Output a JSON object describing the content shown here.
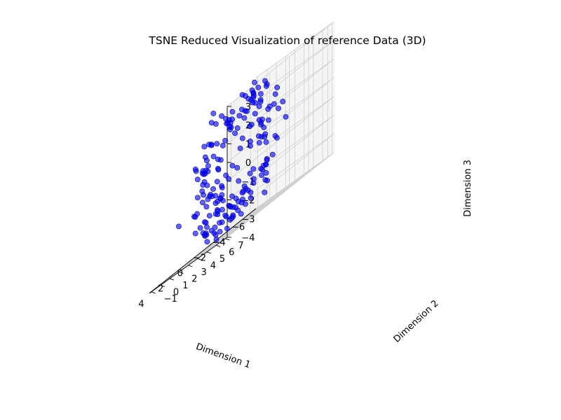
{
  "chart_data": {
    "type": "scatter",
    "title": "TSNE Reduced Visualization of reference Data (3D)",
    "xlabel": "Dimension 1",
    "ylabel": "Dimension 2",
    "zlabel": "Dimension 3",
    "xlim": [
      -6.6,
      4.4
    ],
    "ylim": [
      -1.2,
      7.2
    ],
    "zlim": [
      -4,
      3
    ],
    "xticks": [
      "−6",
      "−4",
      "−2",
      "0",
      "2",
      "4"
    ],
    "yticks": [
      "−1",
      "0",
      "1",
      "2",
      "3",
      "4",
      "5",
      "6",
      "7"
    ],
    "zticks": [
      "−4",
      "−3",
      "−2",
      "−1",
      "0",
      "1",
      "2",
      "3"
    ],
    "grid": true,
    "series": [
      {
        "color": "#0000ff",
        "points": [
          [
            -5.89,
            0.71,
            -1.79
          ],
          [
            -5.16,
            1.31,
            -2.77
          ],
          [
            -5.48,
            1.07,
            -2.44
          ],
          [
            -5.37,
            2.35,
            -0.97
          ],
          [
            -4.55,
            2.14,
            -1.68
          ],
          [
            -3.91,
            1.05,
            -3.13
          ],
          [
            -3.51,
            1.76,
            -1.66
          ],
          [
            -2.89,
            1.6,
            -2.41
          ],
          [
            -1.92,
            1.74,
            -3.21
          ],
          [
            -1.72,
            0.79,
            -3.77
          ],
          [
            -1.18,
            1.9,
            -2.22
          ],
          [
            -0.38,
            3.69,
            -3.46
          ],
          [
            0.24,
            1.78,
            -2.32
          ],
          [
            1.02,
            1.24,
            -2.45
          ],
          [
            1.37,
            2.79,
            -3.55
          ],
          [
            1.21,
            2.23,
            -1.35
          ],
          [
            2.14,
            1.59,
            -1.68
          ],
          [
            1.84,
            4.83,
            -2.54
          ],
          [
            2.28,
            6.21,
            -1.51
          ],
          [
            2.78,
            4.43,
            -0.7
          ],
          [
            3.13,
            3.71,
            -0.5
          ],
          [
            1.74,
            2.95,
            0.74
          ],
          [
            3.84,
            4.05,
            -0.84
          ],
          [
            0.66,
            5.79,
            -0.15
          ],
          [
            1.42,
            4.44,
            1.88
          ],
          [
            3.27,
            3.57,
            -0.21
          ],
          [
            2.31,
            2.4,
            0.4
          ],
          [
            1.34,
            2.3,
            1.4
          ],
          [
            -0.64,
            5.57,
            0.53
          ],
          [
            0.4,
            3.86,
            1.11
          ],
          [
            -0.34,
            2.3,
            1.91
          ],
          [
            -1.91,
            3.44,
            2.45
          ],
          [
            -2.43,
            4.66,
            1.1
          ],
          [
            -4.11,
            3.69,
            1.76
          ],
          [
            -3.21,
            2.87,
            2.08
          ],
          [
            -2.53,
            3.56,
            1.8
          ],
          [
            -5.12,
            3.24,
            0.75
          ],
          [
            -4.79,
            3.91,
            -0.17
          ],
          [
            -5.65,
            1.89,
            1.41
          ],
          [
            -3.97,
            2.36,
            -1.89
          ],
          [
            -4.91,
            1.5,
            -3.4
          ],
          [
            -3.61,
            0.79,
            -3.23
          ],
          [
            -1.18,
            0.81,
            -3.21
          ],
          [
            -1.04,
            0.52,
            -2.46
          ],
          [
            -0.22,
            0.68,
            -3.22
          ],
          [
            0.5,
            1.8,
            -3.15
          ],
          [
            2.38,
            2.85,
            -3.15
          ],
          [
            3.22,
            0.74,
            -1.6
          ],
          [
            2.56,
            4.7,
            -1.6
          ],
          [
            2.41,
            3.32,
            -1.15
          ],
          [
            2.88,
            4.62,
            0.46
          ],
          [
            1.03,
            5.52,
            1.59
          ],
          [
            1.65,
            4.74,
            1.64
          ],
          [
            1.35,
            3.79,
            1.13
          ],
          [
            -0.13,
            4.58,
            1.81
          ],
          [
            -0.93,
            3.92,
            2.38
          ],
          [
            -2.14,
            2.96,
            2.16
          ],
          [
            -3.43,
            3.1,
            2.6
          ],
          [
            -5.52,
            1.88,
            0.94
          ],
          [
            -5.81,
            0.98,
            0.28
          ],
          [
            -6.09,
            0.43,
            -0.81
          ],
          [
            -4.32,
            0.95,
            -2.24
          ],
          [
            -3.58,
            0.49,
            -2.51
          ],
          [
            -2.13,
            1.32,
            -2.51
          ],
          [
            -0.93,
            0.8,
            -3.14
          ],
          [
            1.2,
            0.95,
            -2.59
          ],
          [
            2.23,
            1.47,
            -1.76
          ],
          [
            2.49,
            4.75,
            -1.95
          ],
          [
            1.64,
            4.88,
            -0.48
          ],
          [
            2.7,
            3.03,
            0.19
          ],
          [
            3.45,
            3.01,
            0.2
          ],
          [
            3.16,
            2.55,
            0.68
          ],
          [
            2.36,
            3.11,
            1.58
          ],
          [
            0.41,
            4.66,
            2.88
          ],
          [
            -1.26,
            3.92,
            0.87
          ],
          [
            -2.22,
            4.68,
            1.03
          ],
          [
            -3.83,
            2.82,
            2.26
          ],
          [
            -3.53,
            2.5,
            1.66
          ],
          [
            -3.7,
            2.38,
            0.53
          ],
          [
            -4.1,
            0.84,
            -2.83
          ],
          [
            -3.06,
            0.6,
            -2.81
          ],
          [
            -2.57,
            0.39,
            -3.42
          ],
          [
            -2.16,
            0.67,
            -2.74
          ],
          [
            -0.06,
            2.32,
            -2.92
          ],
          [
            0.58,
            0.8,
            -3.22
          ],
          [
            0.91,
            1.31,
            -1.7
          ],
          [
            2.44,
            3.92,
            -2.39
          ],
          [
            1.05,
            3.1,
            -1.17
          ],
          [
            3.19,
            3.31,
            -0.31
          ],
          [
            2.32,
            3.91,
            1.32
          ],
          [
            0.62,
            3.18,
            1.96
          ],
          [
            0.85,
            2.89,
            2.56
          ],
          [
            -0.97,
            1.79,
            2.0
          ],
          [
            -3.06,
            2.35,
            2.94
          ],
          [
            -3.11,
            2.09,
            1.94
          ],
          [
            -6.06,
            0.45,
            -2.0
          ],
          [
            -2.61,
            1.73,
            -2.2
          ],
          [
            -1.13,
            0.89,
            -2.55
          ],
          [
            -0.08,
            0.35,
            -3.64
          ],
          [
            1.76,
            0.88,
            -1.73
          ],
          [
            2.29,
            3.73,
            -1.41
          ],
          [
            1.85,
            4.69,
            -1.03
          ],
          [
            3.19,
            2.75,
            -0.79
          ],
          [
            2.79,
            4.56,
            -0.11
          ],
          [
            2.51,
            3.14,
            0.19
          ],
          [
            2.54,
            3.56,
            1.5
          ],
          [
            2.05,
            2.69,
            0.46
          ],
          [
            -0.98,
            5.03,
            0.83
          ],
          [
            -1.35,
            3.14,
            1.84
          ],
          [
            -2.49,
            3.35,
            2.55
          ],
          [
            -0.34,
            0.75,
            2.97
          ],
          [
            -5.98,
            0.13,
            0.55
          ],
          [
            -5.99,
            1.52,
            -0.83
          ],
          [
            -4.24,
            0.63,
            -1.8
          ],
          [
            -3.47,
            1.21,
            -2.59
          ],
          [
            -0.51,
            0.66,
            -3.46
          ],
          [
            0.81,
            1.03,
            -3.16
          ],
          [
            1.48,
            1.56,
            -2.97
          ],
          [
            1.48,
            1.5,
            -1.31
          ],
          [
            2.24,
            2.64,
            -2.48
          ],
          [
            1.89,
            4.03,
            -1.25
          ],
          [
            3.36,
            3.59,
            0.23
          ],
          [
            1.99,
            3.99,
            0.29
          ],
          [
            3.27,
            2.6,
            0.81
          ],
          [
            1.73,
            3.19,
            2.39
          ],
          [
            1.15,
            2.12,
            2.6
          ],
          [
            0.07,
            2.52,
            2.22
          ],
          [
            -1.66,
            2.83,
            2.62
          ],
          [
            -2.79,
            2.7,
            1.83
          ],
          [
            -3.81,
            2.9,
            2.35
          ],
          [
            -5.29,
            2.59,
            0.55
          ],
          [
            -6.09,
            0.34,
            -0.35
          ],
          [
            -5.53,
            1.72,
            -1.71
          ],
          [
            -4.87,
            1.82,
            -2.86
          ],
          [
            -3.79,
            0.38,
            -2.48
          ],
          [
            -2.61,
            0.49,
            -3.31
          ],
          [
            0.29,
            1.73,
            -3.86
          ],
          [
            -0.19,
            2.58,
            -2.55
          ],
          [
            1.42,
            3.98,
            -2.97
          ],
          [
            1.83,
            3.47,
            -1.81
          ],
          [
            2.79,
            4.8,
            -1.75
          ],
          [
            2.54,
            5.11,
            -0.71
          ],
          [
            2.48,
            4.2,
            -0.05
          ],
          [
            2.01,
            4.23,
            0.98
          ],
          [
            3.35,
            3.75,
            1.08
          ],
          [
            0.28,
            4.48,
            2.11
          ],
          [
            0.55,
            3.45,
            1.65
          ],
          [
            -1.6,
            3.75,
            2.23
          ],
          [
            -3.13,
            2.15,
            2.43
          ],
          [
            -2.37,
            1.77,
            0.44
          ],
          [
            -4.5,
            1.92,
            -0.41
          ],
          [
            -5.27,
            1.25,
            -1.97
          ],
          [
            -2.79,
            1.24,
            -2.98
          ],
          [
            -2.15,
            0.98,
            -3.38
          ],
          [
            0.72,
            1.06,
            -3.11
          ],
          [
            0.42,
            2.25,
            -3.57
          ],
          [
            1.77,
            2.54,
            -2.27
          ],
          [
            1.36,
            3.27,
            -1.76
          ],
          [
            2.72,
            2.74,
            -0.64
          ],
          [
            2.79,
            3.21,
            0.33
          ],
          [
            1.28,
            5.05,
            1.32
          ],
          [
            0.99,
            3.95,
            1.52
          ],
          [
            0.35,
            3.5,
            1.96
          ],
          [
            -1.02,
            2.85,
            1.82
          ],
          [
            -2.98,
            2.49,
            1.25
          ],
          [
            -4.19,
            1.67,
            1.44
          ],
          [
            -3.85,
            2.04,
            -0.5
          ],
          [
            -5.19,
            0.97,
            -2.11
          ],
          [
            -4.66,
            1.45,
            -2.36
          ],
          [
            -1.08,
            2.11,
            -2.83
          ],
          [
            -1.63,
            2.56,
            -2.8
          ],
          [
            -1.36,
            1.49,
            -3.4
          ],
          [
            0.54,
            0.97,
            -2.82
          ],
          [
            0.83,
            2.22,
            -1.87
          ],
          [
            1.64,
            3.28,
            -2.51
          ],
          [
            2.88,
            3.52,
            -1.28
          ],
          [
            2.95,
            4.17,
            -0.93
          ],
          [
            1.44,
            5.51,
            0.14
          ],
          [
            3.34,
            3.89,
            0.85
          ],
          [
            2.57,
            2.81,
            1.66
          ],
          [
            1.12,
            4.34,
            2.38
          ],
          [
            -1.23,
            4.18,
            2.34
          ],
          [
            -2.61,
            2.57,
            2.62
          ],
          [
            -0.51,
            5.77,
            -0.14
          ],
          [
            -0.99,
            4.97,
            -0.01
          ],
          [
            -2.08,
            2.86,
            0.82
          ],
          [
            -3.69,
            1.23,
            -0.07
          ],
          [
            -4.45,
            1.59,
            -1.98
          ],
          [
            -3.16,
            2.13,
            -2.4
          ],
          [
            -2.35,
            1.05,
            -2.99
          ],
          [
            1.73,
            0.98,
            -2.68
          ],
          [
            1.59,
            2.36,
            -1.24
          ],
          [
            3.42,
            3.51,
            0.33
          ],
          [
            -2.78,
            3.64,
            0.19
          ],
          [
            -0.47,
            3.19,
            -0.86
          ]
        ]
      }
    ]
  }
}
